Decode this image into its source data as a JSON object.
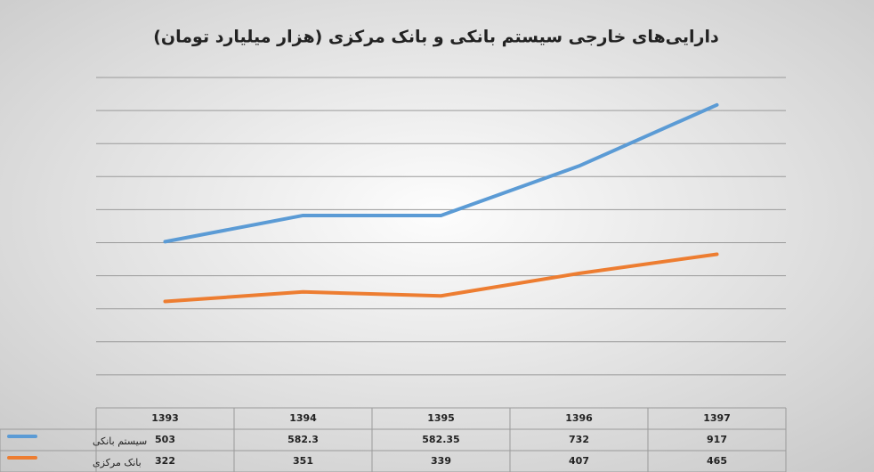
{
  "chart_data": {
    "type": "line",
    "title": "دارایی‌های خارجی سیستم بانکی و بانک مرکزی (هزار میلیارد تومان)",
    "categories": [
      "1393",
      "1394",
      "1395",
      "1396",
      "1397"
    ],
    "series": [
      {
        "name": "سیستم بانکی",
        "color": "#5b9bd5",
        "values": [
          503,
          582.3,
          582.35,
          732,
          917
        ]
      },
      {
        "name": "بانک مرکزی",
        "color": "#ed7d31",
        "values": [
          322,
          351,
          339,
          407,
          465
        ]
      }
    ],
    "ylim": [
      0,
      1000
    ],
    "yticks": [
      0,
      100,
      200,
      300,
      400,
      500,
      600,
      700,
      800,
      900,
      1000
    ],
    "grid": true
  }
}
